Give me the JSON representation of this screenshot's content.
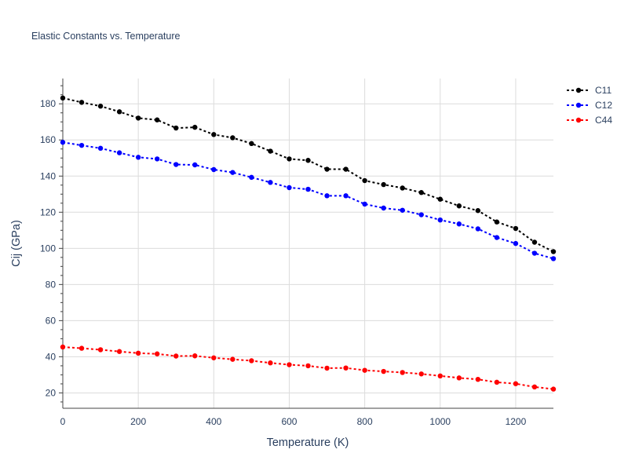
{
  "chart_data": {
    "type": "line",
    "title": "Elastic Constants vs. Temperature",
    "xlabel": "Temperature (K)",
    "ylabel": "Cij (GPa)",
    "xlim": [
      0,
      1300
    ],
    "ylim": [
      11.5,
      194
    ],
    "x_ticks": [
      0,
      200,
      400,
      600,
      800,
      1000,
      1200
    ],
    "y_ticks": [
      20,
      40,
      60,
      80,
      100,
      120,
      140,
      160,
      180
    ],
    "grid": true,
    "legend_position": "top-right",
    "x": [
      0,
      50,
      100,
      150,
      200,
      250,
      300,
      350,
      400,
      450,
      500,
      550,
      600,
      650,
      700,
      750,
      800,
      850,
      900,
      950,
      1000,
      1050,
      1100,
      1150,
      1200,
      1250,
      1300
    ],
    "series": [
      {
        "name": "C11",
        "color": "#000000",
        "values": [
          183.2,
          180.8,
          178.7,
          175.6,
          172.1,
          171.1,
          166.6,
          167.0,
          163.0,
          161.2,
          158.0,
          153.8,
          149.5,
          148.7,
          143.8,
          143.8,
          137.5,
          135.3,
          133.4,
          130.9,
          127.2,
          123.5,
          120.9,
          114.6,
          111.0,
          103.4,
          98.2
        ]
      },
      {
        "name": "C12",
        "color": "#0000ff",
        "values": [
          158.7,
          157.0,
          155.4,
          152.9,
          150.4,
          149.5,
          146.4,
          146.2,
          143.6,
          142.0,
          139.3,
          136.5,
          133.6,
          132.7,
          129.1,
          129.1,
          124.5,
          122.3,
          121.1,
          118.6,
          115.7,
          113.5,
          110.8,
          106.0,
          102.7,
          97.3,
          94.3
        ]
      },
      {
        "name": "C44",
        "color": "#ff0000",
        "values": [
          45.4,
          44.7,
          43.9,
          42.9,
          42.0,
          41.6,
          40.4,
          40.5,
          39.4,
          38.6,
          37.8,
          36.6,
          35.6,
          35.0,
          33.7,
          33.8,
          32.5,
          31.9,
          31.3,
          30.5,
          29.4,
          28.3,
          27.5,
          25.9,
          25.1,
          23.3,
          22.1
        ]
      }
    ]
  }
}
